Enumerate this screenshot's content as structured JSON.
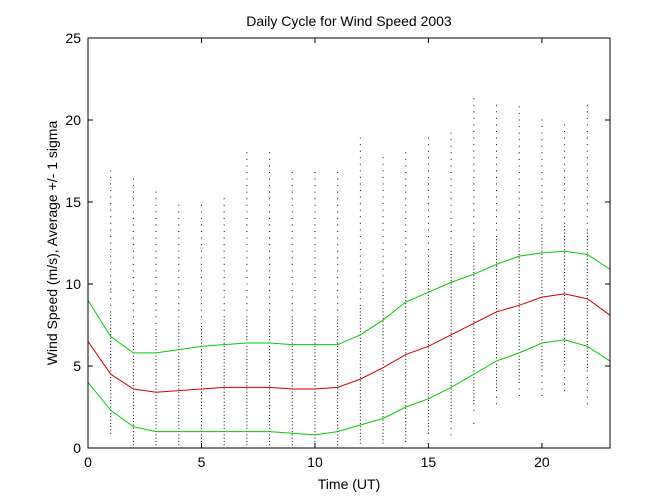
{
  "chart_data": {
    "type": "line",
    "title": "Daily Cycle for Wind Speed 2003",
    "xlabel": "Time (UT)",
    "ylabel": "Wind Speed (m/s), Average +/- 1 sigma",
    "xlim": [
      0,
      23
    ],
    "ylim": [
      0,
      25
    ],
    "xticks": [
      "0",
      "5",
      "10",
      "15",
      "20"
    ],
    "yticks": [
      "0",
      "5",
      "10",
      "15",
      "20",
      "25"
    ],
    "grid": false,
    "legend": "none",
    "colors": {
      "mean": "#cc0000",
      "sigma": "#00cc00",
      "points": "#000000"
    },
    "x": [
      0,
      1,
      2,
      3,
      4,
      5,
      6,
      7,
      8,
      9,
      10,
      11,
      12,
      13,
      14,
      15,
      16,
      17,
      18,
      19,
      20,
      21,
      22,
      23
    ],
    "series": [
      {
        "role": "mean",
        "values": [
          6.5,
          4.5,
          3.6,
          3.4,
          3.5,
          3.6,
          3.7,
          3.7,
          3.7,
          3.6,
          3.6,
          3.7,
          4.2,
          4.9,
          5.7,
          6.2,
          6.9,
          7.6,
          8.3,
          8.7,
          9.2,
          9.4,
          9.1,
          8.1
        ]
      },
      {
        "role": "plus_sigma",
        "values": [
          9.0,
          6.8,
          5.8,
          5.8,
          6.0,
          6.2,
          6.3,
          6.4,
          6.4,
          6.3,
          6.3,
          6.3,
          6.9,
          7.8,
          8.9,
          9.5,
          10.1,
          10.6,
          11.2,
          11.7,
          11.9,
          12.0,
          11.8,
          10.9
        ]
      },
      {
        "role": "minus_sigma",
        "values": [
          4.0,
          2.3,
          1.3,
          1.0,
          1.0,
          1.0,
          1.0,
          1.0,
          1.0,
          0.9,
          0.8,
          1.0,
          1.4,
          1.8,
          2.5,
          3.0,
          3.7,
          4.5,
          5.3,
          5.8,
          6.4,
          6.6,
          6.2,
          5.3
        ]
      }
    ],
    "scatter_range": {
      "min": [
        0.5,
        0.3,
        0.2,
        0.2,
        0.2,
        0.2,
        0.2,
        0.2,
        0.2,
        0.2,
        0.2,
        0.2,
        0.3,
        0.3,
        0.4,
        0.5,
        0.8,
        1.5,
        2.5,
        3.0,
        3.2,
        3.5,
        2.5,
        0.8
      ],
      "max": [
        11.5,
        17.2,
        16.5,
        15.8,
        14.8,
        14.8,
        15.5,
        18.3,
        18.0,
        16.8,
        16.8,
        16.8,
        19.2,
        18.0,
        18.0,
        19.0,
        19.2,
        21.3,
        21.0,
        20.8,
        20.0,
        19.8,
        21.0,
        14.0
      ]
    }
  }
}
